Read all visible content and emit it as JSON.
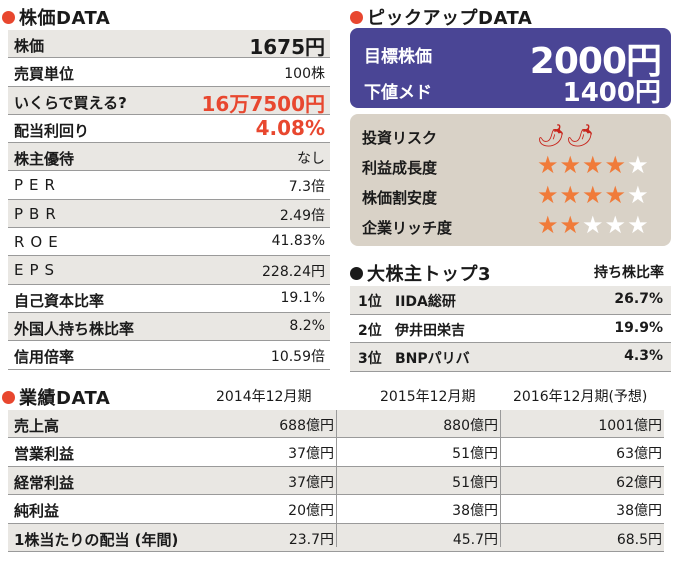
{
  "stock_section": {
    "title": "株価DATA",
    "rows": [
      {
        "label": "株価",
        "value": "1675円"
      },
      {
        "label": "売買単位",
        "value": "100株"
      },
      {
        "label": "いくらで買える?",
        "value": "16万7500円"
      },
      {
        "label": "配当利回り",
        "value": "4.08%"
      },
      {
        "label": "株主優待",
        "value": "なし"
      },
      {
        "label": "PER",
        "value": "7.3倍"
      },
      {
        "label": "PBR",
        "value": "2.49倍"
      },
      {
        "label": "ROE",
        "value": "41.83%"
      },
      {
        "label": "EPS",
        "value": "228.24円"
      },
      {
        "label": "自己資本比率",
        "value": "19.1%"
      },
      {
        "label": "外国人持ち株比率",
        "value": "8.2%"
      },
      {
        "label": "信用倍率",
        "value": "10.59倍"
      }
    ]
  },
  "pickup_section": {
    "title": "ピックアップDATA",
    "target_label": "目標株価",
    "target_value": "2000円",
    "floor_label": "下値メド",
    "floor_value": "1400円",
    "ratings": [
      {
        "label": "投資リスク",
        "type": "pepper",
        "level": 2,
        "max": 2
      },
      {
        "label": "利益成長度",
        "type": "star",
        "level": 4,
        "max": 5
      },
      {
        "label": "株価割安度",
        "type": "star",
        "level": 4,
        "max": 5
      },
      {
        "label": "企業リッチ度",
        "type": "star",
        "level": 2,
        "max": 5
      }
    ],
    "colors": {
      "box": "#4a4595",
      "star_on": "#f07b3a",
      "pepper": "#c8261d"
    }
  },
  "shareholders_section": {
    "title": "大株主トップ3",
    "column_header": "持ち株比率",
    "rows": [
      {
        "rank": "1位",
        "name": "IIDA総研",
        "pct": "26.7%"
      },
      {
        "rank": "2位",
        "name": "伊井田栄吉",
        "pct": "19.9%"
      },
      {
        "rank": "3位",
        "name": "BNPパリバ",
        "pct": "4.3%"
      }
    ]
  },
  "performance_section": {
    "title": "業績DATA",
    "columns": [
      "2014年12月期",
      "2015年12月期",
      "2016年12月期(予想)"
    ],
    "rows": [
      {
        "label": "売上高",
        "values": [
          "688億円",
          "880億円",
          "1001億円"
        ]
      },
      {
        "label": "営業利益",
        "values": [
          "37億円",
          "51億円",
          "63億円"
        ]
      },
      {
        "label": "経常利益",
        "values": [
          "37億円",
          "51億円",
          "62億円"
        ]
      },
      {
        "label": "純利益",
        "values": [
          "20億円",
          "38億円",
          "38億円"
        ]
      },
      {
        "label": "1株当たりの配当 (年間)",
        "values": [
          "23.7円",
          "45.7円",
          "68.5円"
        ]
      }
    ]
  }
}
